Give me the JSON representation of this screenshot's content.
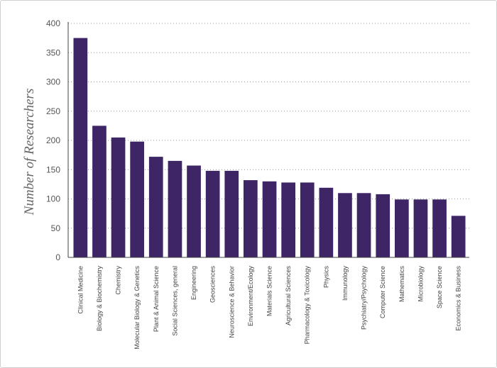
{
  "chart_data": {
    "type": "bar",
    "title": "",
    "xlabel": "",
    "ylabel": "Number of Researchers",
    "ylim": [
      0,
      400
    ],
    "yticks": [
      0,
      50,
      100,
      150,
      200,
      250,
      300,
      350,
      400
    ],
    "grid": true,
    "bar_color": "#3e2566",
    "categories": [
      "Clinical Medicine",
      "Biology & Biochemistry",
      "Chemistry",
      "Molecular Biology & Genetics",
      "Plant & Animal Science",
      "Social Sciences, general",
      "Engineering",
      "Geosciences",
      "Neuroscience & Behavior",
      "Environment/Ecology",
      "Materials Science",
      "Agricultural Sciences",
      "Pharmacology & Toxicology",
      "Physics",
      "Immunology",
      "Psychiatry/Psychology",
      "Computer Science",
      "Mathematics",
      "Microbiology",
      "Space Science",
      "Economics & Business"
    ],
    "values": [
      375,
      225,
      205,
      198,
      172,
      165,
      157,
      148,
      148,
      132,
      130,
      128,
      128,
      119,
      110,
      110,
      108,
      99,
      99,
      99,
      71
    ]
  }
}
